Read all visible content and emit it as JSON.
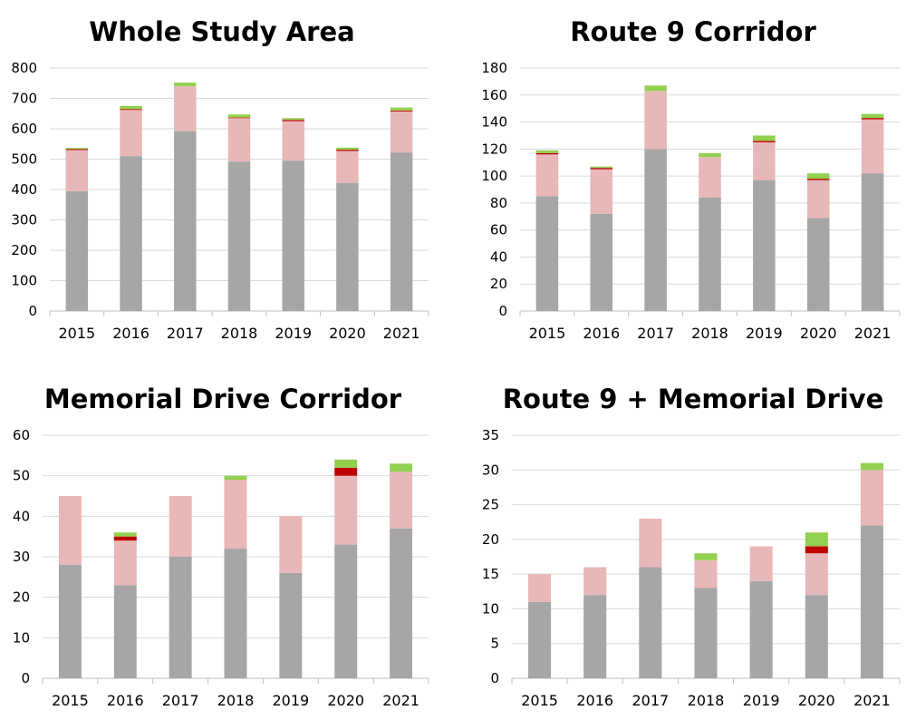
{
  "colors": {
    "base": "#a6a6a6",
    "pink": "#e8b7b8",
    "red": "#c00000",
    "green": "#92d050",
    "grid": "#d9d9d9",
    "axis": "#bfbfbf",
    "text": "#000000"
  },
  "chart_data": [
    {
      "type": "bar",
      "stacked": true,
      "title": "Whole Study Area",
      "categories": [
        "2015",
        "2016",
        "2017",
        "2018",
        "2019",
        "2020",
        "2021"
      ],
      "ylim": [
        0,
        800
      ],
      "yticks": [
        "0",
        "100",
        "200",
        "300",
        "400",
        "500",
        "600",
        "700",
        "800"
      ],
      "grid": true,
      "series": [
        {
          "color": "base",
          "values": [
            395,
            510,
            592,
            492,
            495,
            422,
            522
          ]
        },
        {
          "color": "pink",
          "values": [
            135,
            152,
            148,
            143,
            130,
            105,
            135
          ]
        },
        {
          "color": "red",
          "values": [
            3,
            3,
            0,
            2,
            4,
            4,
            3
          ]
        },
        {
          "color": "green",
          "values": [
            4,
            10,
            12,
            10,
            6,
            7,
            10
          ]
        }
      ]
    },
    {
      "type": "bar",
      "stacked": true,
      "title": "Route 9 Corridor",
      "categories": [
        "2015",
        "2016",
        "2017",
        "2018",
        "2019",
        "2020",
        "2021"
      ],
      "ylim": [
        0,
        180
      ],
      "yticks": [
        "0",
        "20",
        "40",
        "60",
        "80",
        "100",
        "120",
        "140",
        "160",
        "180"
      ],
      "grid": true,
      "series": [
        {
          "color": "base",
          "values": [
            85,
            72,
            120,
            84,
            97,
            69,
            102
          ]
        },
        {
          "color": "pink",
          "values": [
            31,
            33,
            43,
            30,
            28,
            28,
            40
          ]
        },
        {
          "color": "red",
          "values": [
            1,
            1,
            0,
            0,
            1,
            1,
            1
          ]
        },
        {
          "color": "green",
          "values": [
            2,
            1,
            4,
            3,
            4,
            4,
            3
          ]
        }
      ]
    },
    {
      "type": "bar",
      "stacked": true,
      "title": "Memorial Drive Corridor",
      "categories": [
        "2015",
        "2016",
        "2017",
        "2018",
        "2019",
        "2020",
        "2021"
      ],
      "ylim": [
        0,
        60
      ],
      "yticks": [
        "0",
        "10",
        "20",
        "30",
        "40",
        "50",
        "60"
      ],
      "grid": true,
      "series": [
        {
          "color": "base",
          "values": [
            28,
            23,
            30,
            32,
            26,
            33,
            37
          ]
        },
        {
          "color": "pink",
          "values": [
            17,
            11,
            15,
            17,
            14,
            17,
            14
          ]
        },
        {
          "color": "red",
          "values": [
            0,
            1,
            0,
            0,
            0,
            2,
            0
          ]
        },
        {
          "color": "green",
          "values": [
            0,
            1,
            0,
            1,
            0,
            2,
            2
          ]
        }
      ]
    },
    {
      "type": "bar",
      "stacked": true,
      "title": "Route 9 + Memorial Drive",
      "categories": [
        "2015",
        "2016",
        "2017",
        "2018",
        "2019",
        "2020",
        "2021"
      ],
      "ylim": [
        0,
        35
      ],
      "yticks": [
        "0",
        "5",
        "10",
        "15",
        "20",
        "25",
        "30",
        "35"
      ],
      "grid": true,
      "series": [
        {
          "color": "base",
          "values": [
            11,
            12,
            16,
            13,
            14,
            12,
            22
          ]
        },
        {
          "color": "pink",
          "values": [
            4,
            4,
            7,
            4,
            5,
            6,
            8
          ]
        },
        {
          "color": "red",
          "values": [
            0,
            0,
            0,
            0,
            0,
            1,
            0
          ]
        },
        {
          "color": "green",
          "values": [
            0,
            0,
            0,
            1,
            0,
            2,
            1
          ]
        }
      ]
    }
  ]
}
